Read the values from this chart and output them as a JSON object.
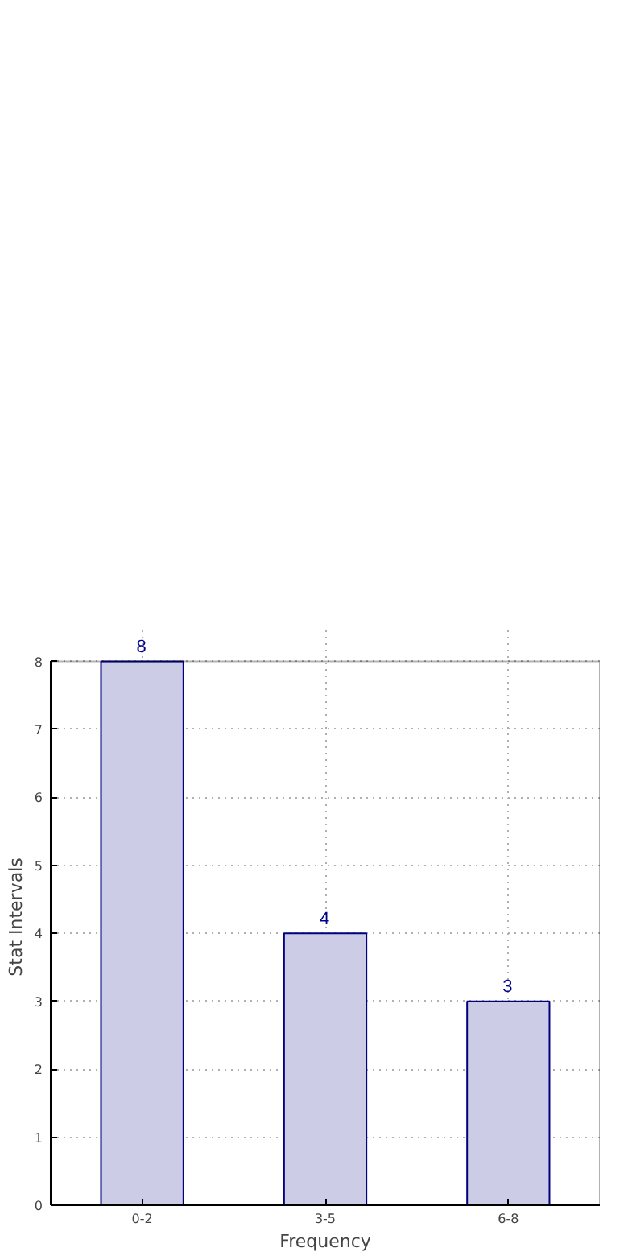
{
  "chart_data": {
    "type": "bar",
    "xlabel": "Frequency",
    "ylabel": "Stat Intervals",
    "categories": [
      "0-2",
      "3-5",
      "6-8"
    ],
    "values": [
      8,
      4,
      3
    ],
    "color": "#cccce6",
    "ylim": [
      0,
      8
    ],
    "yticks": [
      0,
      1,
      2,
      3,
      4,
      5,
      6,
      7,
      8
    ],
    "grid": true,
    "data_labels": true
  }
}
